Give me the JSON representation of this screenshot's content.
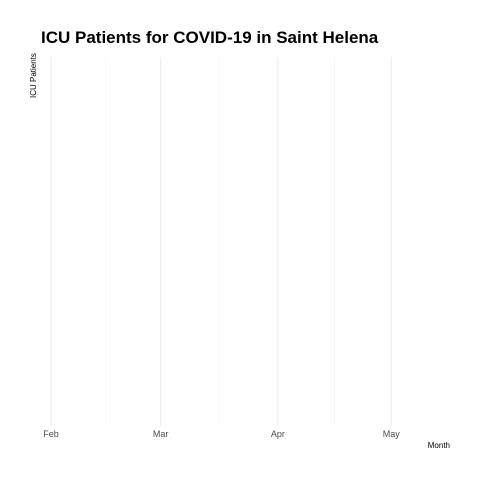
{
  "chart_data": {
    "type": "line",
    "title": "ICU Patients for COVID-19 in Saint Helena",
    "xlabel": "Month",
    "ylabel": "ICU Patients",
    "x_ticks": [
      "Feb",
      "Mar",
      "Apr",
      "May"
    ],
    "x_tick_dates": [
      "2020-02-01",
      "2020-03-01",
      "2020-04-01",
      "2020-05-01"
    ],
    "xlim": [
      "2020-02-01",
      "2020-05-16"
    ],
    "grid": true,
    "legend": "none",
    "series": [],
    "colors": {
      "background": "#ffffff",
      "grid_major": "#ebebeb",
      "grid_minor": "#f5f5f5",
      "tick_text": "#4d4d4d",
      "title_text": "#000000"
    }
  }
}
